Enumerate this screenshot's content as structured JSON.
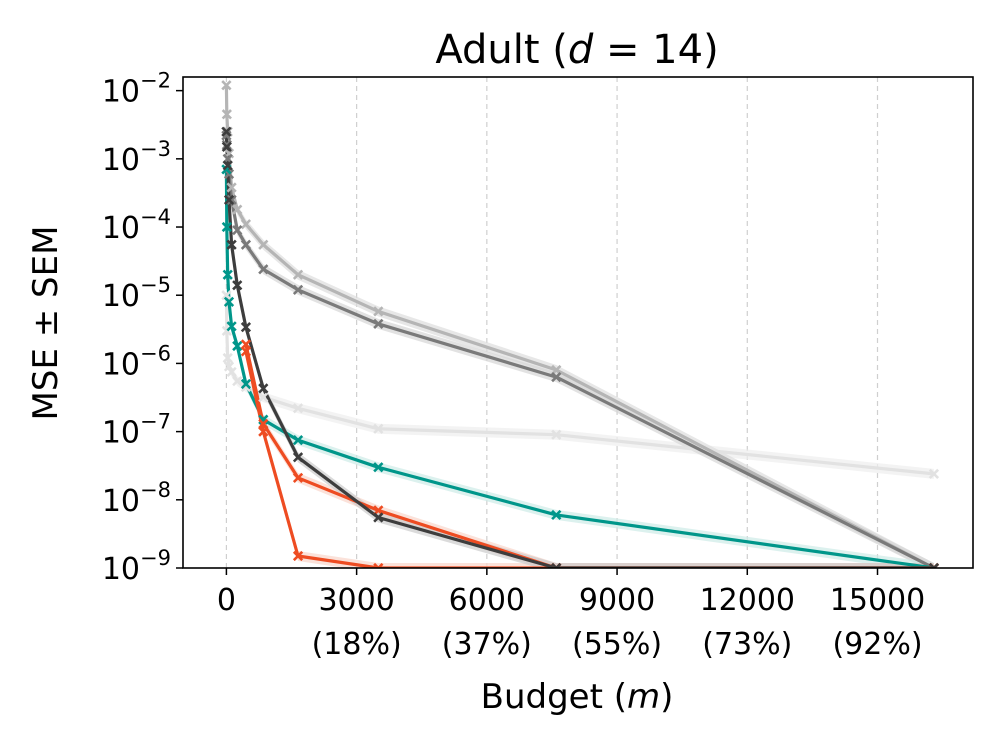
{
  "chart_data": {
    "type": "line",
    "title_main": "Adult (",
    "title_var": "d",
    "title_rest": " = 14)",
    "xlabel_main": "Budget (",
    "xlabel_var": "m",
    "xlabel_rest": ")",
    "ylabel": "MSE ± SEM",
    "xlim": [
      -1000,
      17200
    ],
    "ylim_log10": [
      -9,
      -1.8
    ],
    "x_ticks": [
      {
        "value": 0,
        "label": "0",
        "sub": ""
      },
      {
        "value": 3000,
        "label": "3000",
        "sub": "(18%)"
      },
      {
        "value": 6000,
        "label": "6000",
        "sub": "(37%)"
      },
      {
        "value": 9000,
        "label": "9000",
        "sub": "(55%)"
      },
      {
        "value": 12000,
        "label": "12000",
        "sub": "(73%)"
      },
      {
        "value": 15000,
        "label": "15000",
        "sub": "(92%)"
      }
    ],
    "y_ticks": [
      {
        "exp": -2,
        "label": "10",
        "sup": "−2"
      },
      {
        "exp": -3,
        "label": "10",
        "sup": "−3"
      },
      {
        "exp": -4,
        "label": "10",
        "sup": "−4"
      },
      {
        "exp": -5,
        "label": "10",
        "sup": "−5"
      },
      {
        "exp": -6,
        "label": "10",
        "sup": "−6"
      },
      {
        "exp": -7,
        "label": "10",
        "sup": "−7"
      },
      {
        "exp": -8,
        "label": "10",
        "sup": "−8"
      },
      {
        "exp": -9,
        "label": "10",
        "sup": "−9"
      }
    ],
    "grid": "vertical dashed",
    "series": [
      {
        "name": "light-gray",
        "color": "#e2e2e2",
        "band": "#eeeeee",
        "x": [
          0,
          10,
          30,
          60,
          120,
          250,
          450,
          850,
          1650,
          3500,
          7600,
          16300
        ],
        "y": [
          1e-05,
          3e-06,
          1.2e-06,
          9e-07,
          7.5e-07,
          5.5e-07,
          4.5e-07,
          3.2e-07,
          2.2e-07,
          1.1e-07,
          9e-08,
          2.4e-08
        ]
      },
      {
        "name": "mid-gray",
        "color": "#b5b5b5",
        "band": "#dddddd",
        "x": [
          0,
          10,
          30,
          60,
          120,
          250,
          450,
          850,
          1650,
          3500,
          7600,
          16300
        ],
        "y": [
          0.012,
          0.0045,
          0.0025,
          0.0012,
          0.00038,
          0.00018,
          0.00011,
          5.5e-05,
          2e-05,
          5.8e-06,
          8e-07,
          1e-09
        ]
      },
      {
        "name": "dark-gray",
        "color": "#7a7a7a",
        "band": "#d5d5d5",
        "x": [
          0,
          10,
          30,
          60,
          120,
          250,
          450,
          850,
          1650,
          3500,
          7600,
          16300
        ],
        "y": [
          0.0022,
          0.0016,
          0.001,
          0.0006,
          0.00025,
          9e-05,
          5.5e-05,
          2.4e-05,
          1.2e-05,
          3.8e-06,
          6.3e-07,
          1e-09
        ]
      },
      {
        "name": "teal",
        "color": "#00968a",
        "band": "#cdebe7",
        "x": [
          0,
          10,
          30,
          60,
          120,
          250,
          450,
          850,
          1650,
          3500,
          7600,
          16300
        ],
        "y": [
          0.0007,
          0.0001,
          2e-05,
          8e-06,
          3.5e-06,
          1.8e-06,
          5e-07,
          1.5e-07,
          7.5e-08,
          3e-08,
          6e-09,
          1e-09
        ]
      },
      {
        "name": "orange",
        "color": "#ee4c22",
        "band": "#f9d5ca",
        "x": [
          450,
          850,
          1650,
          3500,
          7600,
          16300
        ],
        "y": [
          1.9e-06,
          1.3e-07,
          2.1e-08,
          7e-09,
          1e-09,
          1e-09
        ]
      },
      {
        "name": "orange-2",
        "color": "#ee4c22",
        "band": "#f9d5ca",
        "x": [
          450,
          850,
          1650,
          3500,
          7600,
          16300
        ],
        "y": [
          1.5e-06,
          1e-07,
          1.5e-09,
          1e-09,
          1e-09,
          1e-09
        ]
      },
      {
        "name": "black",
        "color": "#3d3d3d",
        "band": "#cccccc",
        "x": [
          0,
          10,
          30,
          60,
          120,
          250,
          450,
          850,
          1650,
          3500,
          7600,
          16300
        ],
        "y": [
          0.0025,
          0.0015,
          0.0008,
          0.00025,
          5.5e-05,
          1.4e-05,
          3.4e-06,
          4.3e-07,
          4.2e-08,
          5.5e-09,
          1e-09,
          1e-09
        ]
      }
    ]
  }
}
